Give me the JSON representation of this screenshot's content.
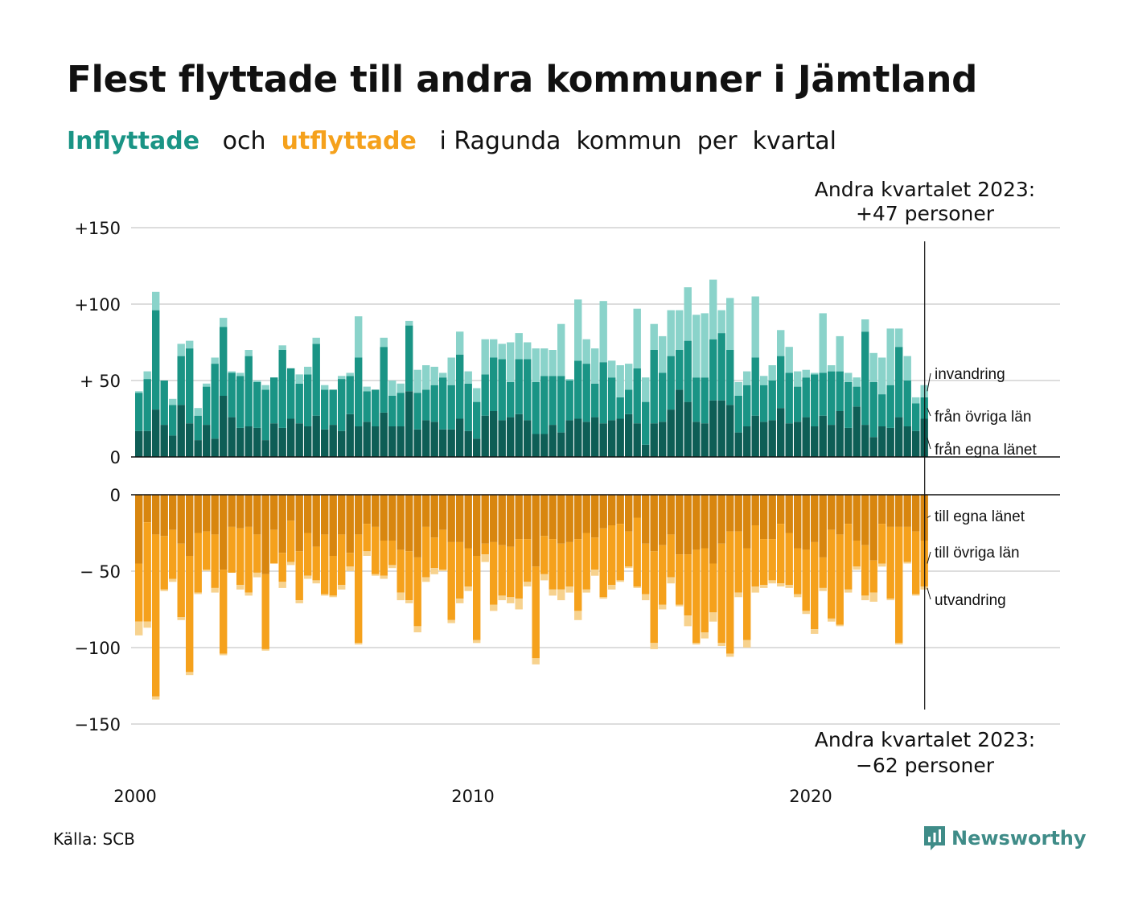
{
  "title": "Flest flyttade till andra kommuner i Jämtland",
  "subtitle": {
    "in_word": "Inflyttade",
    "och": "och",
    "out_word": "utflyttade",
    "rest": "i Ragunda  kommun  per  kvartal"
  },
  "colors": {
    "in_egna": "#0e5e56",
    "in_ovriga": "#1a9485",
    "in_invandring": "#8ad3ca",
    "out_egna": "#d8860f",
    "out_ovriga": "#f5a11c",
    "out_utvandring": "#f7d28e",
    "text": "#111111",
    "grid": "#dddddd",
    "in_accent": "#1a9485",
    "out_accent": "#f5a11c",
    "brand": "#3f8c88"
  },
  "source": "Källa: SCB",
  "brand": {
    "name": "Newsworthy",
    "icon": "newsworthy-logo-icon"
  },
  "chart_data": {
    "type": "bar",
    "stacked": true,
    "grid": true,
    "x_ticks": [
      "2000",
      "2010",
      "2020"
    ],
    "y_ticks_top": [
      "+150",
      "+100",
      "+ 50",
      "0"
    ],
    "y_ticks_bottom": [
      "0",
      "− 50",
      "−100",
      "−150"
    ],
    "ylim_in": [
      0,
      150
    ],
    "ylim_out": [
      -150,
      0
    ],
    "start_year": 2000,
    "annotation_top": {
      "line1": "Andra kvartalet 2023:",
      "line2": "+47 personer"
    },
    "annotation_bottom": {
      "line1": "Andra kvartalet 2023:",
      "line2": "−62 personer"
    },
    "series_in": [
      {
        "name": "från egna länet",
        "values": [
          17,
          17,
          31,
          21,
          14,
          34,
          22,
          11,
          21,
          12,
          40,
          26,
          19,
          20,
          19,
          11,
          22,
          19,
          25,
          22,
          20,
          27,
          18,
          21,
          17,
          28,
          20,
          23,
          20,
          29,
          20,
          20,
          43,
          18,
          24,
          23,
          18,
          18,
          25,
          17,
          12,
          27,
          30,
          24,
          26,
          28,
          24,
          15,
          15,
          21,
          16,
          24,
          25,
          23,
          26,
          22,
          24,
          25,
          28,
          22,
          8,
          22,
          23,
          31,
          44,
          36,
          23,
          22,
          37,
          37,
          34,
          16,
          20,
          27,
          23,
          24,
          32,
          22,
          23,
          26,
          20,
          27,
          21,
          30,
          19,
          33,
          21,
          13,
          20,
          19,
          26,
          20,
          17,
          25
        ]
      },
      {
        "name": "från övriga län",
        "values": [
          25,
          34,
          65,
          29,
          20,
          32,
          49,
          16,
          25,
          49,
          45,
          29,
          34,
          46,
          30,
          33,
          30,
          51,
          33,
          26,
          34,
          47,
          26,
          23,
          34,
          25,
          45,
          20,
          24,
          43,
          20,
          22,
          43,
          24,
          20,
          24,
          34,
          29,
          42,
          31,
          24,
          27,
          35,
          40,
          23,
          36,
          40,
          34,
          38,
          32,
          37,
          26,
          38,
          38,
          22,
          40,
          28,
          14,
          16,
          36,
          28,
          48,
          32,
          35,
          26,
          40,
          29,
          30,
          40,
          44,
          36,
          24,
          27,
          38,
          24,
          26,
          34,
          33,
          23,
          26,
          34,
          28,
          35,
          26,
          30,
          13,
          61,
          36,
          21,
          28,
          46,
          30,
          18,
          14
        ]
      },
      {
        "name": "invandring",
        "values": [
          1,
          5,
          12,
          0,
          4,
          8,
          5,
          5,
          2,
          4,
          6,
          1,
          2,
          4,
          1,
          3,
          0,
          3,
          0,
          6,
          5,
          4,
          3,
          0,
          2,
          2,
          27,
          3,
          0,
          6,
          10,
          6,
          3,
          15,
          16,
          12,
          3,
          18,
          15,
          8,
          9,
          23,
          12,
          10,
          26,
          17,
          11,
          22,
          18,
          17,
          34,
          1,
          40,
          16,
          23,
          40,
          11,
          21,
          17,
          39,
          16,
          17,
          24,
          30,
          26,
          35,
          41,
          42,
          39,
          15,
          34,
          9,
          9,
          40,
          6,
          10,
          17,
          17,
          10,
          5,
          1,
          39,
          4,
          23,
          6,
          6,
          8,
          19,
          24,
          37,
          12,
          16,
          4,
          8
        ]
      }
    ],
    "series_out": [
      {
        "name": "till egna länet",
        "values": [
          45,
          18,
          26,
          27,
          23,
          32,
          40,
          25,
          24,
          26,
          49,
          21,
          22,
          21,
          26,
          52,
          23,
          38,
          17,
          37,
          25,
          34,
          26,
          40,
          26,
          38,
          26,
          19,
          21,
          30,
          30,
          36,
          37,
          41,
          21,
          28,
          23,
          31,
          31,
          35,
          40,
          32,
          31,
          33,
          34,
          29,
          29,
          47,
          27,
          29,
          32,
          31,
          29,
          25,
          28,
          22,
          20,
          19,
          24,
          15,
          32,
          37,
          33,
          26,
          39,
          39,
          36,
          35,
          45,
          32,
          24,
          24,
          35,
          20,
          29,
          29,
          19,
          25,
          35,
          36,
          31,
          41,
          23,
          26,
          19,
          30,
          33,
          43,
          19,
          21,
          21,
          21,
          24,
          30
        ]
      },
      {
        "name": "till övriga län",
        "values": [
          38,
          65,
          106,
          35,
          32,
          48,
          76,
          39,
          25,
          35,
          55,
          30,
          37,
          43,
          25,
          49,
          22,
          19,
          27,
          32,
          28,
          22,
          39,
          26,
          33,
          9,
          71,
          18,
          31,
          23,
          16,
          28,
          32,
          45,
          33,
          20,
          26,
          51,
          37,
          25,
          55,
          7,
          41,
          33,
          33,
          39,
          28,
          60,
          25,
          33,
          30,
          29,
          47,
          37,
          21,
          45,
          39,
          37,
          23,
          45,
          33,
          60,
          39,
          28,
          33,
          40,
          61,
          55,
          32,
          65,
          80,
          40,
          60,
          40,
          30,
          27,
          39,
          34,
          30,
          40,
          57,
          20,
          58,
          59,
          43,
          17,
          33,
          21,
          26,
          47,
          76,
          23,
          41,
          30
        ]
      },
      {
        "name": "utvandring",
        "values": [
          9,
          4,
          2,
          1,
          2,
          2,
          2,
          1,
          1,
          3,
          1,
          0,
          3,
          2,
          3,
          1,
          0,
          4,
          2,
          2,
          2,
          2,
          1,
          1,
          3,
          3,
          1,
          3,
          1,
          2,
          2,
          5,
          2,
          4,
          3,
          4,
          1,
          2,
          3,
          3,
          2,
          5,
          4,
          3,
          4,
          7,
          3,
          4,
          4,
          4,
          7,
          4,
          6,
          2,
          4,
          1,
          3,
          1,
          1,
          1,
          4,
          4,
          3,
          4,
          1,
          7,
          1,
          4,
          6,
          2,
          2,
          3,
          5,
          4,
          2,
          2,
          2,
          2,
          2,
          2,
          3,
          2,
          2,
          1,
          2,
          2,
          3,
          6,
          2,
          1,
          1,
          1,
          1,
          2
        ]
      }
    ]
  }
}
